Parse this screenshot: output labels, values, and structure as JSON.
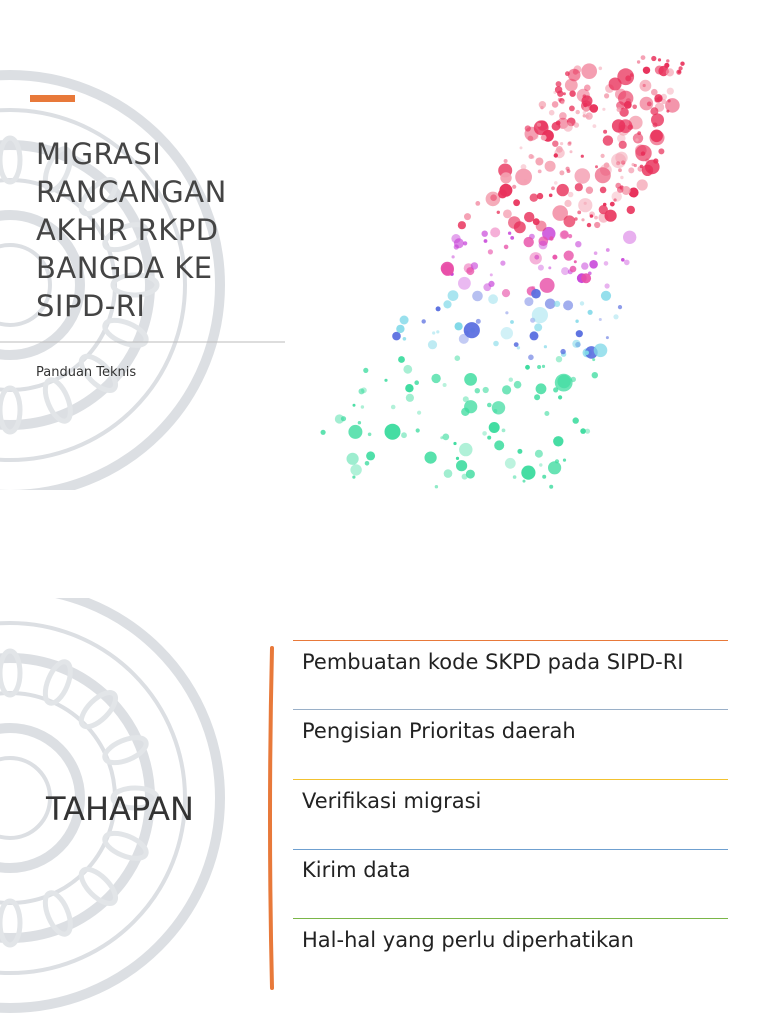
{
  "slide1": {
    "title_lines": [
      "MIGRASI",
      "RANCANGAN",
      "AKHIR RKPD",
      "BANGDA KE",
      "SIPD-RI"
    ],
    "subtitle": "Panduan Teknis"
  },
  "slide2": {
    "title": "TAHAPAN",
    "items": [
      "Pembuatan kode SKPD pada SIPD-RI",
      "Pengisian Prioritas daerah",
      "Verifikasi migrasi",
      "Kirim data",
      "Hal-hal yang perlu diperhatikan"
    ]
  }
}
